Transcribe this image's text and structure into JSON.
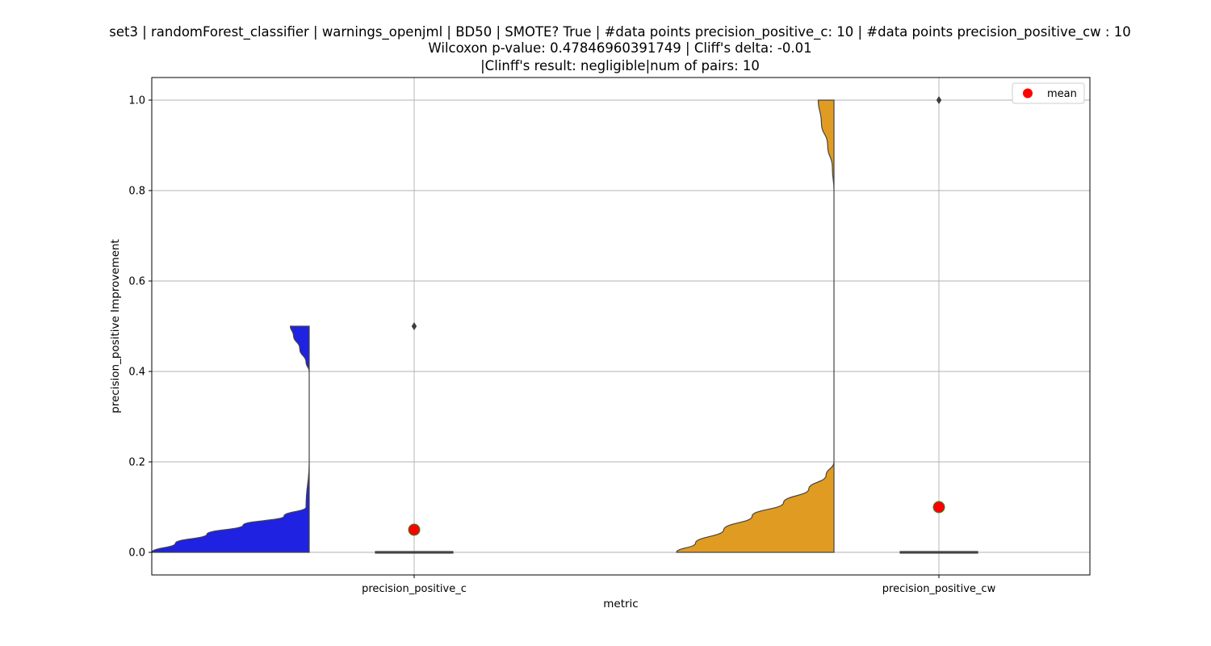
{
  "chart_data": {
    "type": "violin",
    "title_lines": [
      "set3 | randomForest_classifier | warnings_openjml | BD50 | SMOTE? True | #data points precision_positive_c: 10 | #data points precision_positive_cw : 10",
      "Wilcoxon p-value: 0.47846960391749 | Cliff's delta: -0.01",
      "|Clinff's result: negligible|num of pairs: 10"
    ],
    "xlabel": "metric",
    "ylabel": "precision_positive Improvement",
    "ylim": [
      -0.05,
      1.05
    ],
    "yticks": [
      0.0,
      0.2,
      0.4,
      0.6,
      0.8,
      1.0
    ],
    "ytick_labels": [
      "0.0",
      "0.2",
      "0.4",
      "0.6",
      "0.8",
      "1.0"
    ],
    "grid": true,
    "legend": {
      "placement": "top-right",
      "entries": [
        {
          "label": "mean",
          "marker": "circle",
          "color": "#ff0000"
        }
      ]
    },
    "categories": [
      "precision_positive_c",
      "precision_positive_cw"
    ],
    "series": [
      {
        "name": "precision_positive_c",
        "color": "#1f22e0",
        "n": 10,
        "mean": 0.05,
        "median": 0.0,
        "q1": 0.0,
        "q3": 0.0,
        "outliers": [
          0.5
        ],
        "density": [
          {
            "y": 0.0,
            "d": 1.0
          },
          {
            "y": 0.02,
            "d": 0.85
          },
          {
            "y": 0.04,
            "d": 0.65
          },
          {
            "y": 0.06,
            "d": 0.42
          },
          {
            "y": 0.08,
            "d": 0.16
          },
          {
            "y": 0.1,
            "d": 0.02
          },
          {
            "y": 0.2,
            "d": 0.0
          },
          {
            "y": 0.3,
            "d": 0.0
          },
          {
            "y": 0.4,
            "d": 0.0
          },
          {
            "y": 0.42,
            "d": 0.02
          },
          {
            "y": 0.45,
            "d": 0.06
          },
          {
            "y": 0.48,
            "d": 0.1
          },
          {
            "y": 0.5,
            "d": 0.12
          }
        ]
      },
      {
        "name": "precision_positive_cw",
        "color": "#e09c22",
        "n": 10,
        "mean": 0.1,
        "median": 0.0,
        "q1": 0.0,
        "q3": 0.0,
        "outliers": [
          1.0
        ],
        "density": [
          {
            "y": 0.0,
            "d": 1.0
          },
          {
            "y": 0.02,
            "d": 0.88
          },
          {
            "y": 0.05,
            "d": 0.7
          },
          {
            "y": 0.08,
            "d": 0.52
          },
          {
            "y": 0.11,
            "d": 0.32
          },
          {
            "y": 0.14,
            "d": 0.16
          },
          {
            "y": 0.17,
            "d": 0.05
          },
          {
            "y": 0.2,
            "d": 0.0
          },
          {
            "y": 0.5,
            "d": 0.0
          },
          {
            "y": 0.8,
            "d": 0.0
          },
          {
            "y": 0.85,
            "d": 0.01
          },
          {
            "y": 0.9,
            "d": 0.04
          },
          {
            "y": 0.95,
            "d": 0.08
          },
          {
            "y": 1.0,
            "d": 0.1
          }
        ]
      }
    ]
  }
}
